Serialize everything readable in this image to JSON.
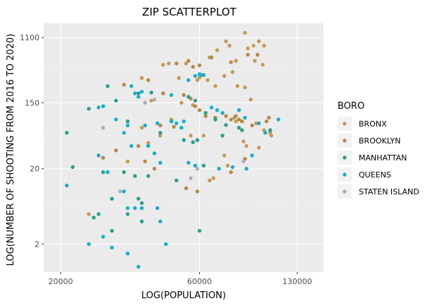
{
  "chart_data": {
    "type": "scatter",
    "title": "ZIP SCATTERPLOT",
    "xlabel": "LOG(POPULATION)",
    "ylabel": "LOG(NUMBER OF SHOOTING FROM 2016 TO 2020)",
    "x_scale": "log",
    "y_scale": "log",
    "xlim": [
      17500,
      160000
    ],
    "ylim": [
      0.85,
      1700
    ],
    "x_ticks": [
      20000,
      60000,
      130000
    ],
    "x_tick_labels": [
      "20000",
      "60000",
      "130000"
    ],
    "y_ticks": [
      2,
      20,
      150,
      1100
    ],
    "y_tick_labels": [
      "2",
      "20",
      "150",
      "1100"
    ],
    "grid": true,
    "legend_title": "BORO",
    "legend_position": "right",
    "series": [
      {
        "name": "BRONX",
        "color": "#c49a57",
        "points": [
          [
            86000,
            1273
          ],
          [
            74000,
            980
          ],
          [
            96000,
            980
          ],
          [
            76000,
            860
          ],
          [
            92000,
            860
          ],
          [
            100000,
            860
          ],
          [
            69000,
            750
          ],
          [
            88000,
            790
          ],
          [
            65000,
            600
          ],
          [
            80000,
            540
          ],
          [
            93000,
            540
          ],
          [
            99000,
            480
          ],
          [
            45000,
            480
          ],
          [
            47000,
            500
          ],
          [
            54000,
            500
          ],
          [
            38000,
            320
          ],
          [
            51000,
            320
          ],
          [
            59000,
            300
          ],
          [
            60000,
            325
          ],
          [
            64000,
            300
          ],
          [
            68000,
            250
          ],
          [
            73000,
            340
          ],
          [
            81000,
            250
          ],
          [
            86000,
            240
          ],
          [
            78000,
            385
          ],
          [
            90000,
            165
          ],
          [
            41000,
            160
          ],
          [
            52000,
            150
          ],
          [
            57000,
            140
          ],
          [
            79000,
            95
          ],
          [
            80000,
            85
          ],
          [
            94000,
            80
          ],
          [
            100000,
            65
          ],
          [
            105000,
            60
          ],
          [
            106000,
            55
          ],
          [
            38000,
            70
          ],
          [
            44000,
            55
          ],
          [
            48000,
            90
          ],
          [
            56000,
            55
          ],
          [
            62000,
            55
          ],
          [
            40000,
            44
          ],
          [
            85000,
            46
          ],
          [
            87000,
            40
          ],
          [
            96000,
            38
          ],
          [
            73000,
            30
          ],
          [
            34000,
            25
          ],
          [
            75000,
            22
          ],
          [
            65000,
            14
          ],
          [
            67000,
            15
          ],
          [
            25000,
            5
          ]
        ]
      },
      {
        "name": "BROOKLYN",
        "color": "#b48a48",
        "points": [
          [
            95000,
            650
          ],
          [
            88000,
            650
          ],
          [
            77000,
            520
          ],
          [
            55000,
            540
          ],
          [
            50000,
            500
          ],
          [
            66000,
            600
          ],
          [
            57000,
            450
          ],
          [
            60000,
            470
          ],
          [
            33000,
            260
          ],
          [
            40000,
            300
          ],
          [
            45000,
            200
          ],
          [
            53000,
            190
          ],
          [
            56000,
            170
          ],
          [
            58000,
            135
          ],
          [
            60000,
            120
          ],
          [
            63000,
            100
          ],
          [
            68000,
            95
          ],
          [
            74000,
            100
          ],
          [
            77000,
            90
          ],
          [
            80000,
            100
          ],
          [
            82000,
            90
          ],
          [
            84000,
            85
          ],
          [
            91000,
            75
          ],
          [
            102000,
            85
          ],
          [
            104000,
            95
          ],
          [
            44000,
            75
          ],
          [
            49000,
            72
          ],
          [
            37000,
            40
          ],
          [
            39000,
            25
          ],
          [
            42000,
            20
          ],
          [
            86000,
            27
          ],
          [
            77000,
            18
          ],
          [
            59000,
            10
          ],
          [
            54000,
            11
          ],
          [
            31000,
            35
          ],
          [
            28000,
            28
          ]
        ]
      },
      {
        "name": "MANHATTAN",
        "color": "#2a9e8e",
        "points": [
          [
            29000,
            250
          ],
          [
            37000,
            200
          ],
          [
            41000,
            205
          ],
          [
            55000,
            180
          ],
          [
            58000,
            160
          ],
          [
            63000,
            110
          ],
          [
            68000,
            90
          ],
          [
            72000,
            55
          ],
          [
            74000,
            76
          ],
          [
            82000,
            70
          ],
          [
            84000,
            65
          ],
          [
            105000,
            65
          ],
          [
            31000,
            160
          ],
          [
            34000,
            85
          ],
          [
            44000,
            60
          ],
          [
            53000,
            48
          ],
          [
            57000,
            45
          ],
          [
            59000,
            48
          ],
          [
            25000,
            125
          ],
          [
            21000,
            60
          ],
          [
            22000,
            21
          ],
          [
            28000,
            18
          ],
          [
            33000,
            18
          ],
          [
            36000,
            16
          ],
          [
            40000,
            16
          ],
          [
            30000,
            8
          ],
          [
            37000,
            8
          ],
          [
            34000,
            5
          ],
          [
            38000,
            7
          ],
          [
            30000,
            3
          ],
          [
            60000,
            3
          ],
          [
            38000,
            4
          ],
          [
            27000,
            5
          ],
          [
            26000,
            4.5
          ],
          [
            50000,
            14
          ],
          [
            62000,
            22
          ]
        ]
      },
      {
        "name": "QUEENS",
        "color": "#1aaec8",
        "points": [
          [
            35000,
            250
          ],
          [
            37000,
            180
          ],
          [
            36000,
            200
          ],
          [
            38000,
            210
          ],
          [
            48000,
            190
          ],
          [
            58000,
            340
          ],
          [
            60000,
            360
          ],
          [
            61000,
            350
          ],
          [
            62000,
            350
          ],
          [
            55000,
            300
          ],
          [
            50000,
            80
          ],
          [
            52000,
            70
          ],
          [
            66000,
            130
          ],
          [
            69000,
            120
          ],
          [
            72000,
            110
          ],
          [
            82000,
            120
          ],
          [
            86000,
            95
          ],
          [
            112000,
            90
          ],
          [
            96000,
            80
          ],
          [
            101000,
            60
          ],
          [
            91000,
            30
          ],
          [
            87000,
            20
          ],
          [
            70000,
            20
          ],
          [
            78000,
            21
          ],
          [
            34000,
            75
          ],
          [
            39000,
            75
          ],
          [
            43000,
            80
          ],
          [
            48000,
            85
          ],
          [
            53000,
            85
          ],
          [
            27000,
            130
          ],
          [
            28000,
            135
          ],
          [
            31000,
            90
          ],
          [
            33000,
            60
          ],
          [
            35000,
            40
          ],
          [
            40000,
            40
          ],
          [
            42000,
            32
          ],
          [
            44000,
            24
          ],
          [
            55000,
            24
          ],
          [
            58000,
            22
          ],
          [
            29000,
            18
          ],
          [
            21000,
            12
          ],
          [
            27000,
            30
          ],
          [
            33000,
            10
          ],
          [
            34000,
            6
          ],
          [
            36000,
            6
          ],
          [
            38000,
            6
          ],
          [
            43000,
            6
          ],
          [
            44000,
            4
          ],
          [
            28000,
            2.5
          ],
          [
            25000,
            2
          ],
          [
            30000,
            1.8
          ],
          [
            34000,
            1.5
          ],
          [
            37000,
            1
          ],
          [
            46000,
            2
          ]
        ]
      },
      {
        "name": "STATEN ISLAND",
        "color": "#b3a8bf",
        "points": [
          [
            39000,
            150
          ],
          [
            42000,
            165
          ],
          [
            28000,
            70
          ],
          [
            59000,
            20
          ],
          [
            85000,
            25
          ],
          [
            56000,
            15
          ],
          [
            32000,
            10
          ]
        ]
      }
    ]
  }
}
